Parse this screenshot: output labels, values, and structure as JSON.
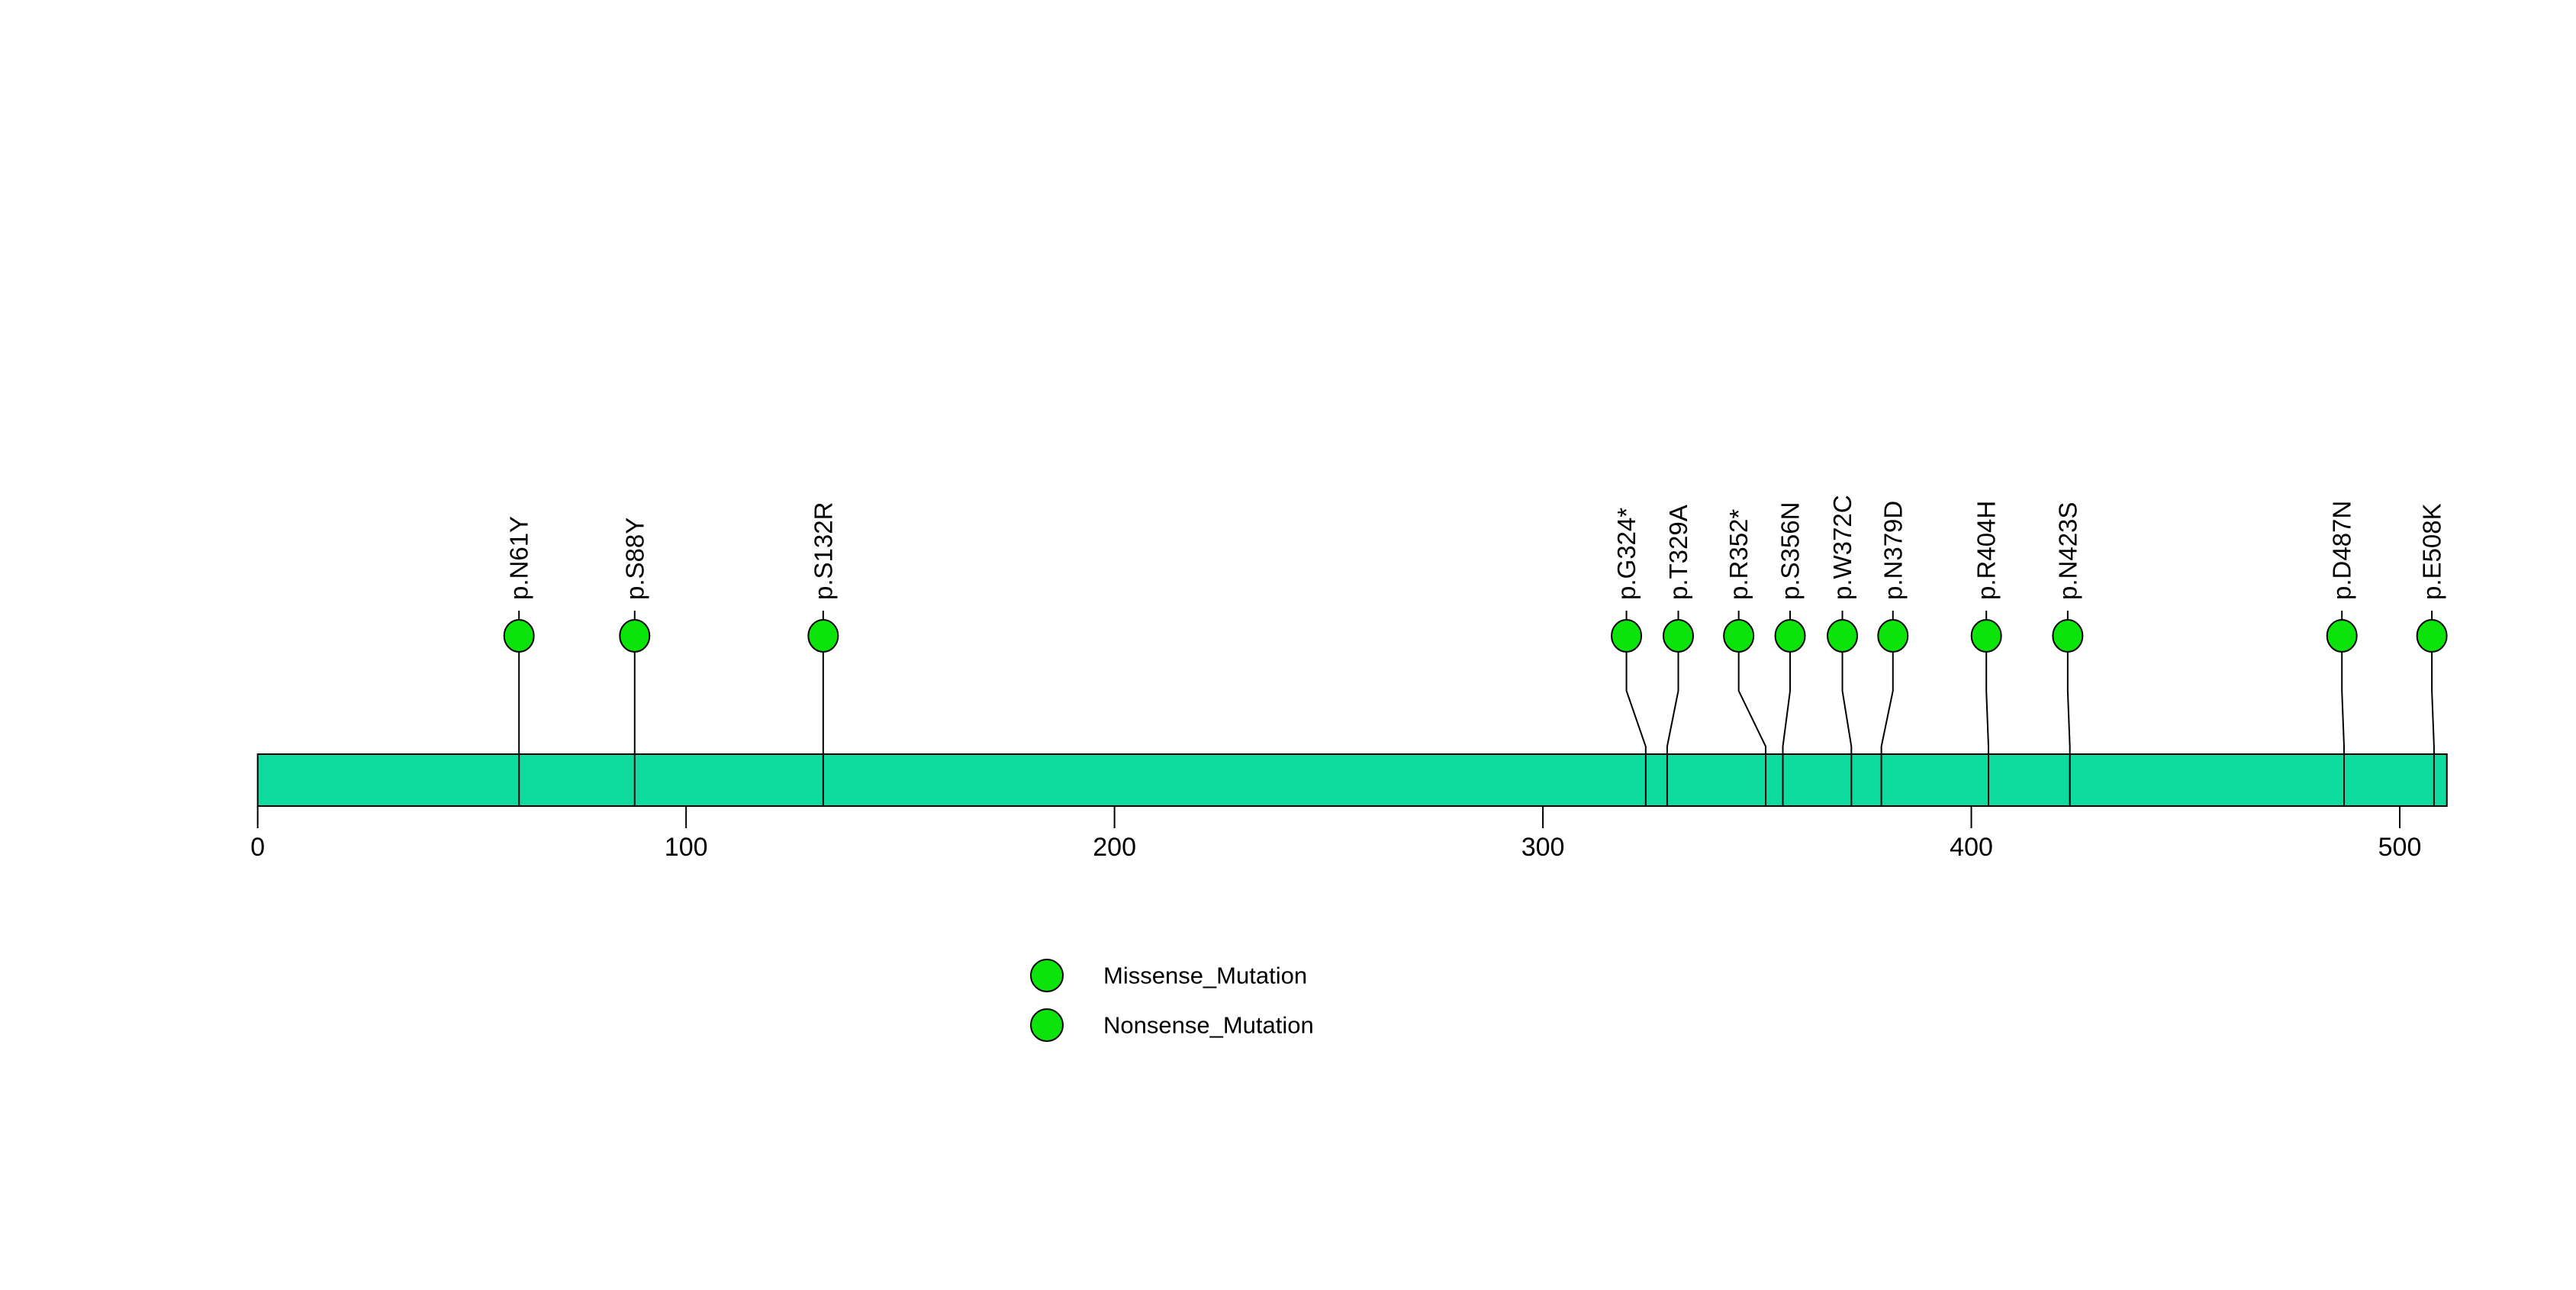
{
  "chart_data": {
    "type": "scatter",
    "subtype": "lollipop-mutation-plot",
    "title": "",
    "xlabel": "",
    "ylabel": "",
    "x_range": [
      0,
      511
    ],
    "protein_length_aa": 511,
    "grid": false,
    "x_ticks": [
      0,
      100,
      200,
      300,
      400,
      500
    ],
    "mutations": [
      {
        "label": "p.N61Y",
        "position": 61,
        "label_anchor": 61,
        "type": "Missense_Mutation"
      },
      {
        "label": "p.S88Y",
        "position": 88,
        "label_anchor": 88,
        "type": "Missense_Mutation"
      },
      {
        "label": "p.S132R",
        "position": 132,
        "label_anchor": 132,
        "type": "Missense_Mutation"
      },
      {
        "label": "p.G324*",
        "position": 324,
        "label_anchor": 319.5,
        "type": "Nonsense_Mutation"
      },
      {
        "label": "p.T329A",
        "position": 329,
        "label_anchor": 331.6,
        "type": "Missense_Mutation"
      },
      {
        "label": "p.R352*",
        "position": 352,
        "label_anchor": 345.7,
        "type": "Nonsense_Mutation"
      },
      {
        "label": "p.S356N",
        "position": 356,
        "label_anchor": 357.7,
        "type": "Missense_Mutation"
      },
      {
        "label": "p.W372C",
        "position": 372,
        "label_anchor": 369.9,
        "type": "Missense_Mutation"
      },
      {
        "label": "p.N379D",
        "position": 379,
        "label_anchor": 381.7,
        "type": "Missense_Mutation"
      },
      {
        "label": "p.R404H",
        "position": 404,
        "label_anchor": 403.5,
        "type": "Missense_Mutation"
      },
      {
        "label": "p.N423S",
        "position": 423,
        "label_anchor": 422.5,
        "type": "Missense_Mutation"
      },
      {
        "label": "p.D487N",
        "position": 487,
        "label_anchor": 486.5,
        "type": "Missense_Mutation"
      },
      {
        "label": "p.E508K",
        "position": 508,
        "label_anchor": 507.5,
        "type": "Missense_Mutation"
      }
    ],
    "legend": [
      {
        "label": "Missense_Mutation",
        "color": "#0BE30B"
      },
      {
        "label": "Nonsense_Mutation",
        "color": "#0BE30B"
      }
    ],
    "legend_position": "bottom",
    "colors": {
      "protein_bar": "#10DB9E",
      "mutation_point": "#0BE30B",
      "outline": "#000000",
      "background": "#FFFFFF"
    }
  }
}
